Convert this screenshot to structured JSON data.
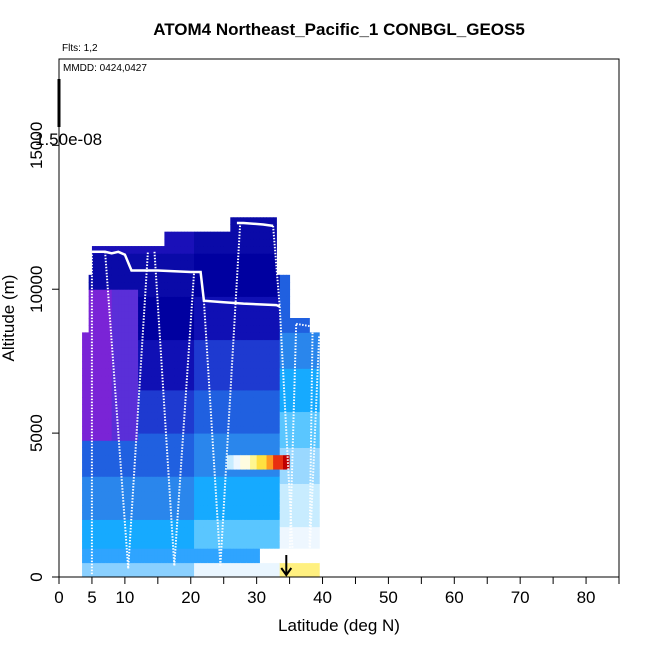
{
  "chart_data": {
    "type": "heatmap",
    "title": "ATOM4 Northeast_Pacific_1 CONBGL_GEOS5",
    "flights_label": "Flts: 1,2",
    "mmdd_label": "MMDD: 0424,0427",
    "colorbar_label": "1.50e-08",
    "xlabel": "Latitude (deg N)",
    "ylabel": "Altitude (m)",
    "xlim": [
      0,
      85
    ],
    "ylim": [
      0,
      18000
    ],
    "x_ticks": [
      0,
      5,
      10,
      20,
      30,
      40,
      50,
      60,
      70,
      80
    ],
    "x_minor_ticks": [
      15,
      25,
      35,
      45,
      55,
      65,
      75,
      85
    ],
    "y_ticks": [
      0,
      5000,
      10000,
      15000
    ],
    "grid": false,
    "flight_track_solid": [
      [
        5,
        11300
      ],
      [
        6,
        11300
      ],
      [
        7,
        11300
      ],
      [
        8,
        11250
      ],
      [
        9,
        11300
      ],
      [
        10,
        11200
      ],
      [
        11,
        10650
      ],
      [
        15,
        10650
      ],
      [
        20,
        10600
      ],
      [
        21.5,
        10600
      ],
      [
        22,
        9600
      ],
      [
        25,
        9550
      ],
      [
        28,
        9500
      ],
      [
        33,
        9450
      ],
      [
        33.5,
        9400
      ]
    ],
    "flight_track_upper": [
      [
        27,
        12300
      ],
      [
        28,
        12300
      ],
      [
        31,
        12250
      ],
      [
        32.5,
        12200
      ]
    ],
    "flight_track_profiles": [
      [
        [
          5,
          100
        ],
        [
          5,
          11300
        ]
      ],
      [
        [
          7,
          11300
        ],
        [
          10.5,
          300
        ]
      ],
      [
        [
          10.5,
          300
        ],
        [
          13.5,
          11300
        ]
      ],
      [
        [
          14.5,
          11300
        ],
        [
          17.5,
          400
        ]
      ],
      [
        [
          17.5,
          400
        ],
        [
          20.5,
          10600
        ]
      ],
      [
        [
          22,
          9600
        ],
        [
          24.5,
          400
        ]
      ],
      [
        [
          24.5,
          400
        ],
        [
          27.5,
          12300
        ]
      ],
      [
        [
          32.5,
          12200
        ],
        [
          33.5,
          9400
        ]
      ],
      [
        [
          33.5,
          9400
        ],
        [
          35.5,
          700
        ]
      ],
      [
        [
          35,
          700
        ],
        [
          36,
          8800
        ]
      ],
      [
        [
          36,
          8800
        ],
        [
          38.5,
          8700
        ]
      ],
      [
        [
          38.5,
          8700
        ],
        [
          38,
          600
        ]
      ],
      [
        [
          38,
          600
        ],
        [
          39.5,
          8400
        ]
      ]
    ],
    "marker_latitude": 34.5
  }
}
